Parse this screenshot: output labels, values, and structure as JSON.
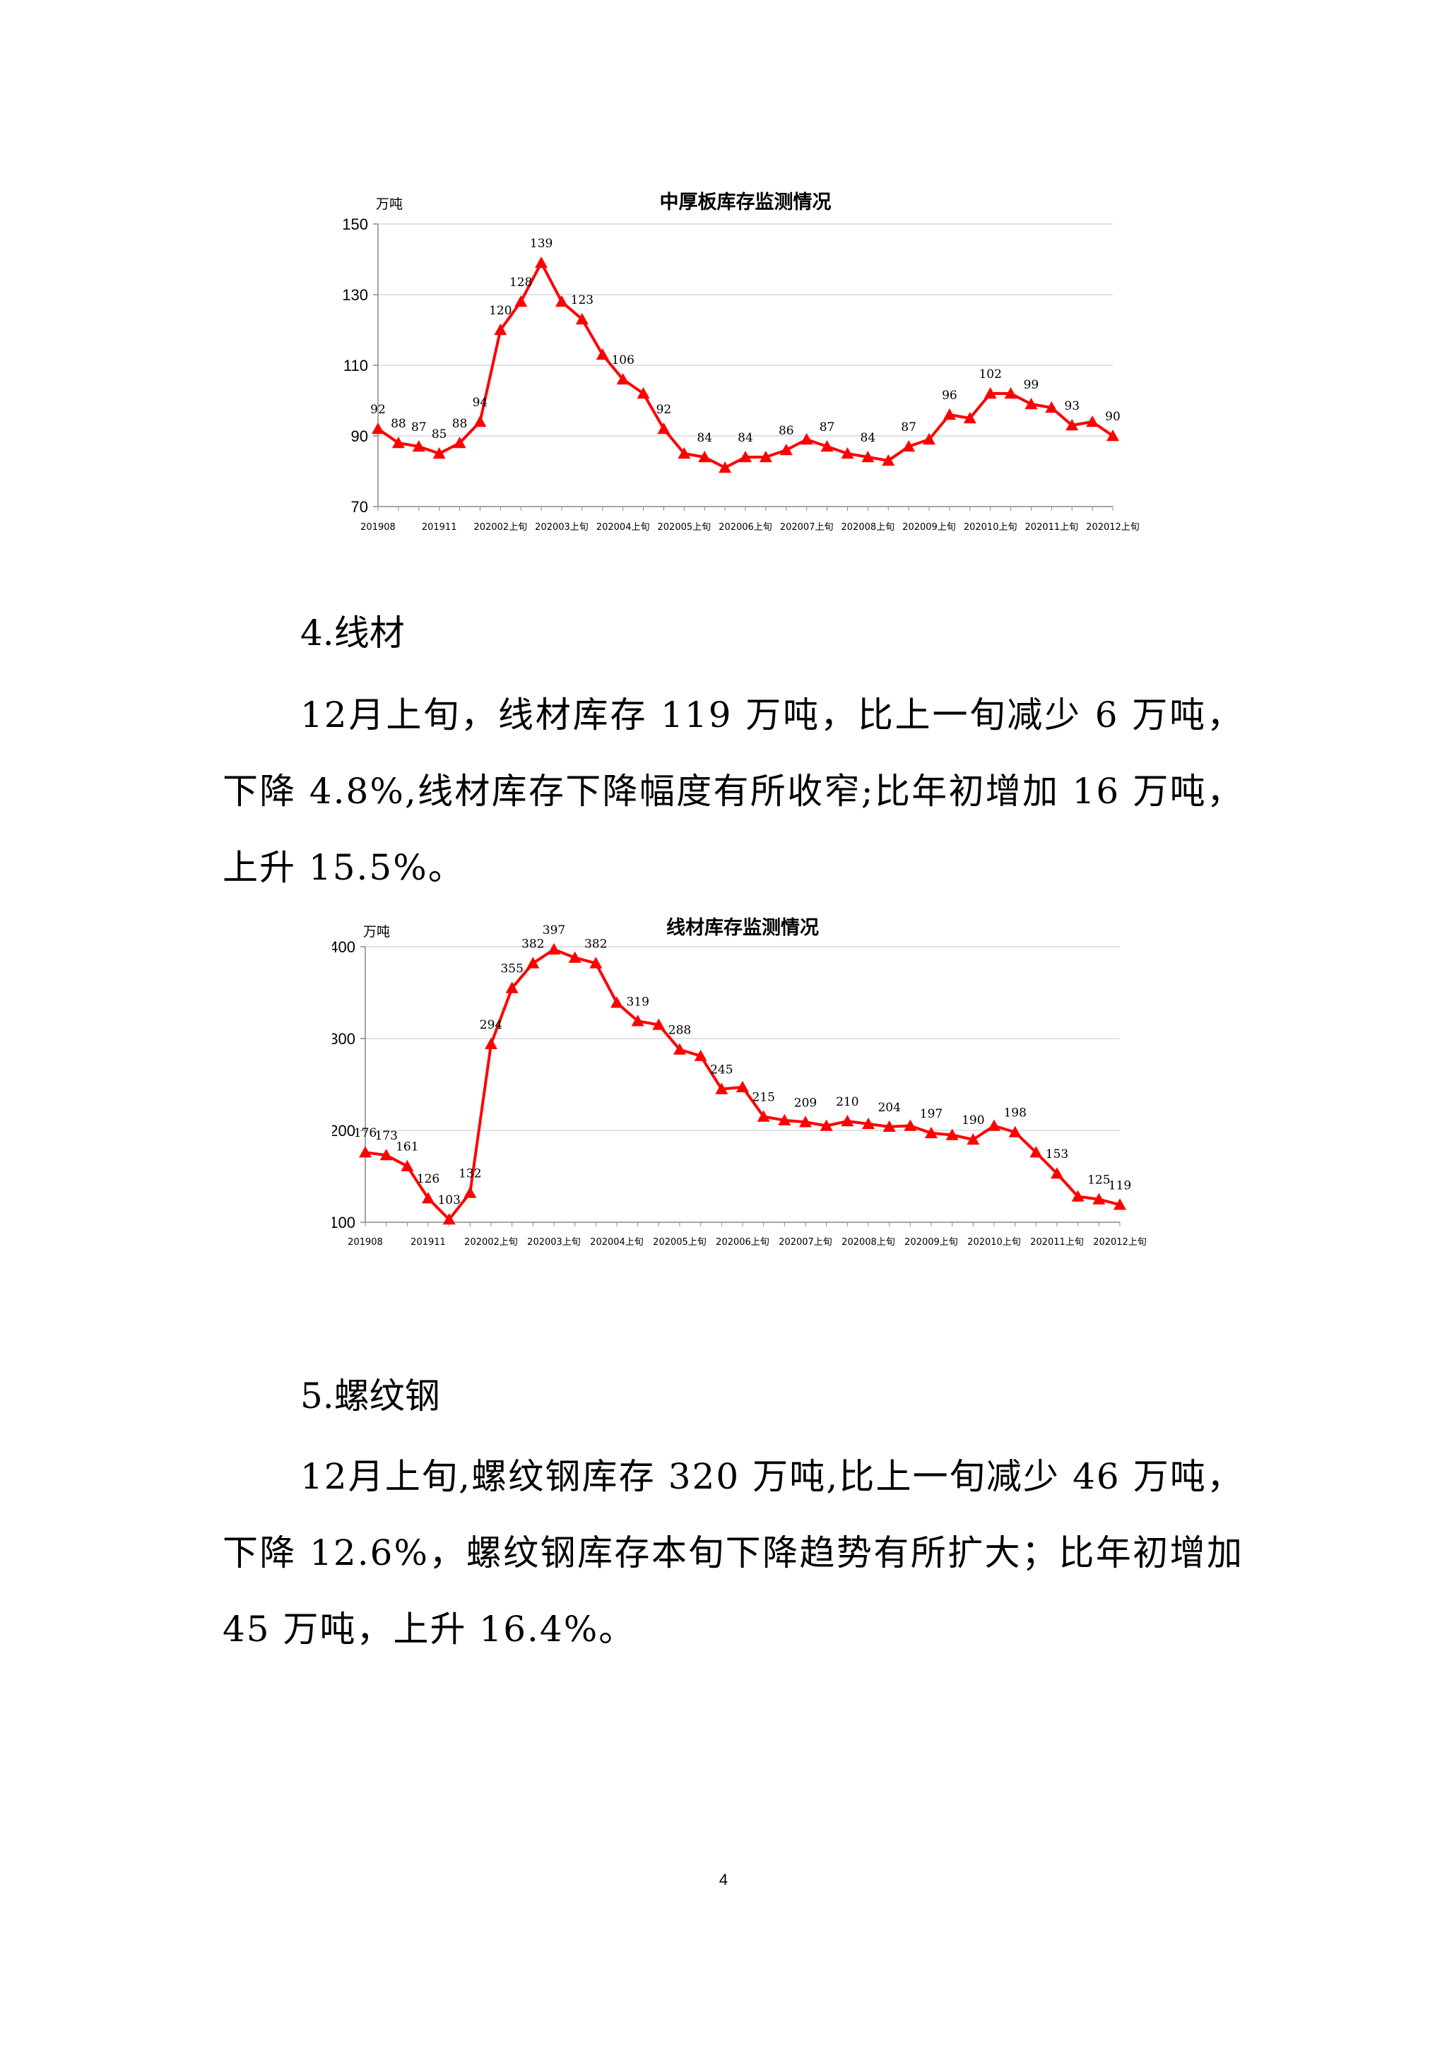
{
  "charts": [
    {
      "type": "line",
      "title": "中厚板库存监测情况",
      "unit": "万吨",
      "ylim": [
        70,
        150
      ],
      "yticks": [
        70,
        90,
        110,
        130,
        150
      ],
      "xtick_labels": [
        "201908",
        "201911",
        "202002上旬",
        "202003上旬",
        "202004上旬",
        "202005上旬",
        "202006上旬",
        "202007上旬",
        "202008上旬",
        "202009上旬",
        "202010上旬",
        "202011上旬",
        "202012上旬"
      ],
      "xtick_indices": [
        0,
        3,
        6,
        9,
        12,
        15,
        18,
        21,
        24,
        27,
        30,
        33,
        36
      ],
      "color": "#ff0000",
      "values": [
        92,
        88,
        87,
        85,
        88,
        94,
        120,
        128,
        139,
        128,
        123,
        113,
        106,
        102,
        92,
        85,
        84,
        81,
        84,
        84,
        86,
        89,
        87,
        85,
        84,
        83,
        87,
        89,
        96,
        95,
        102,
        102,
        99,
        98,
        93,
        94,
        90
      ],
      "labeled": [
        [
          0,
          92
        ],
        [
          1,
          88
        ],
        [
          2,
          87
        ],
        [
          3,
          85
        ],
        [
          4,
          88
        ],
        [
          5,
          94
        ],
        [
          6,
          120
        ],
        [
          7,
          128
        ],
        [
          8,
          139
        ],
        [
          10,
          123
        ],
        [
          12,
          106
        ],
        [
          14,
          92
        ],
        [
          16,
          84
        ],
        [
          18,
          84
        ],
        [
          20,
          86
        ],
        [
          22,
          87
        ],
        [
          24,
          84
        ],
        [
          26,
          87
        ],
        [
          28,
          96
        ],
        [
          30,
          102
        ],
        [
          32,
          99
        ],
        [
          34,
          93
        ],
        [
          36,
          90
        ]
      ]
    },
    {
      "type": "line",
      "title": "线材库存监测情况",
      "unit": "万吨",
      "ylim": [
        100,
        400
      ],
      "yticks": [
        100,
        200,
        300,
        400
      ],
      "xtick_labels": [
        "201908",
        "201911",
        "202002上旬",
        "202003上旬",
        "202004上旬",
        "202005上旬",
        "202006上旬",
        "202007上旬",
        "202008上旬",
        "202009上旬",
        "202010上旬",
        "202011上旬",
        "202012上旬"
      ],
      "xtick_indices": [
        0,
        3,
        6,
        9,
        12,
        15,
        18,
        21,
        24,
        27,
        30,
        33,
        36
      ],
      "color": "#ff0000",
      "values": [
        176,
        173,
        161,
        126,
        103,
        132,
        294,
        355,
        382,
        397,
        388,
        382,
        339,
        319,
        315,
        288,
        281,
        245,
        247,
        215,
        211,
        209,
        205,
        210,
        207,
        204,
        205,
        197,
        195,
        190,
        205,
        198,
        176,
        153,
        128,
        125,
        119
      ],
      "labeled": [
        [
          0,
          176
        ],
        [
          1,
          173
        ],
        [
          2,
          161
        ],
        [
          3,
          126
        ],
        [
          4,
          103
        ],
        [
          5,
          132
        ],
        [
          6,
          294
        ],
        [
          7,
          355
        ],
        [
          8,
          382
        ],
        [
          9,
          397
        ],
        [
          11,
          382
        ],
        [
          13,
          319
        ],
        [
          15,
          288
        ],
        [
          17,
          245
        ],
        [
          19,
          215
        ],
        [
          21,
          209
        ],
        [
          23,
          210
        ],
        [
          25,
          204
        ],
        [
          27,
          197
        ],
        [
          29,
          190
        ],
        [
          31,
          198
        ],
        [
          33,
          153
        ],
        [
          35,
          125
        ],
        [
          36,
          119
        ]
      ]
    }
  ],
  "sections": [
    {
      "heading": "4.线材",
      "paragraph": "12月上旬，线材库存 119 万吨，比上一旬减少 6 万吨，下降 4.8%,线材库存下降幅度有所收窄;比年初增加 16 万吨，上升 15.5%。"
    },
    {
      "heading": "5.螺纹钢",
      "paragraph": "12月上旬,螺纹钢库存 320 万吨,比上一旬减少 46 万吨，下降 12.6%，螺纹钢库存本旬下降趋势有所扩大；比年初增加 45 万吨，上升 16.4%。"
    }
  ],
  "page_number": "4"
}
